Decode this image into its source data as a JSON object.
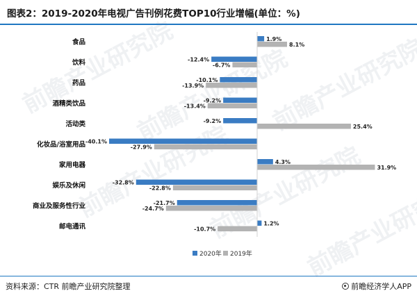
{
  "title": "图表2：2019-2020年电视广告刊例花费TOP10行业增幅(单位：%)",
  "footer": {
    "source": "资料来源：CTR 前瞻产业研究院整理",
    "brand": "前瞻经济学人APP",
    "brand_icon": "qianzhan-logo-icon"
  },
  "watermark": "前瞻产业研究院",
  "colors": {
    "series2020": "#3a7cc3",
    "series2019": "#b3b3b3",
    "accent": "#1f77c2"
  },
  "chart_data": {
    "type": "bar",
    "orientation": "horizontal",
    "categories": [
      "食品",
      "饮料",
      "药品",
      "酒精类饮品",
      "活动类",
      "化妆品/浴室用品",
      "家用电器",
      "娱乐及休闲",
      "商业及服务性行业",
      "邮电通讯"
    ],
    "series": [
      {
        "name": "2020年",
        "values": [
          1.9,
          -12.4,
          -10.1,
          -9.2,
          -9.2,
          -40.1,
          4.3,
          -32.8,
          -21.7,
          1.2
        ]
      },
      {
        "name": "2019年",
        "values": [
          8.1,
          -6.7,
          -13.9,
          -13.4,
          25.4,
          -27.9,
          31.9,
          -22.8,
          -24.7,
          -10.7
        ]
      }
    ],
    "value_suffix": "%",
    "grid": false,
    "legend_position": "bottom"
  }
}
